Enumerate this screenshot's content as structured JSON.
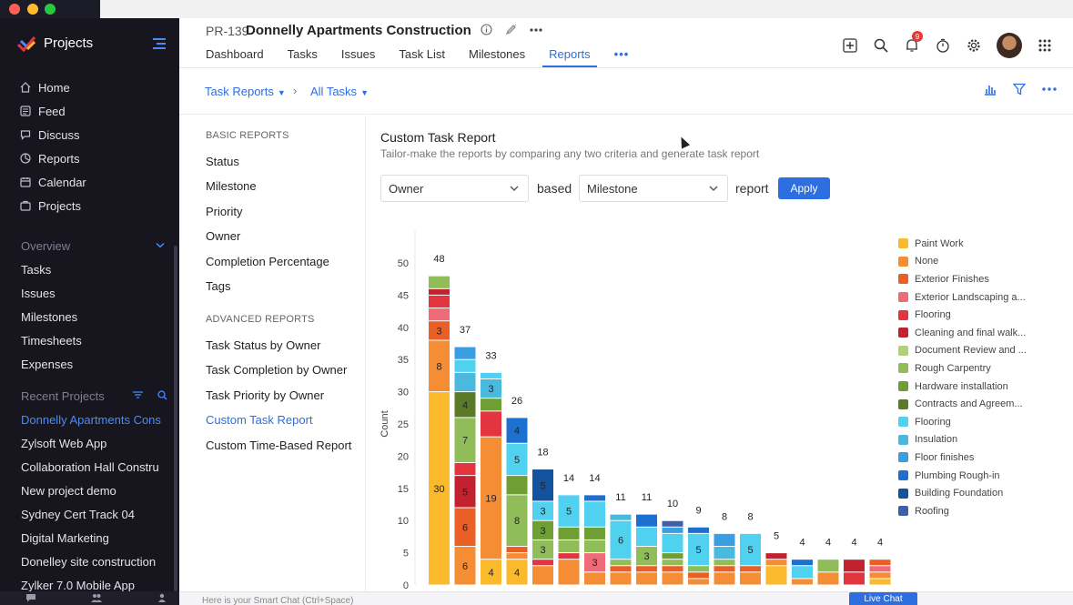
{
  "sidebar": {
    "title": "Projects",
    "nav": [
      {
        "label": "Home",
        "icon": "home-icon"
      },
      {
        "label": "Feed",
        "icon": "feed-icon"
      },
      {
        "label": "Discuss",
        "icon": "discuss-icon"
      },
      {
        "label": "Reports",
        "icon": "reports-icon"
      },
      {
        "label": "Calendar",
        "icon": "calendar-icon"
      },
      {
        "label": "Projects",
        "icon": "projects-icon"
      }
    ],
    "overview_label": "Overview",
    "overview_items": [
      "Tasks",
      "Issues",
      "Milestones",
      "Timesheets",
      "Expenses"
    ],
    "recent_label": "Recent Projects",
    "recent_items": [
      "Donnelly Apartments Cons",
      "Zylsoft Web App",
      "Collaboration Hall Constru",
      "New project demo",
      "Sydney Cert Track 04",
      "Digital Marketing",
      "Donelley site construction",
      "Zylker 7.0 Mobile App"
    ]
  },
  "header": {
    "project_id": "PR-139",
    "project_name": "Donnelly Apartments Construction",
    "tabs": [
      "Dashboard",
      "Tasks",
      "Issues",
      "Task List",
      "Milestones",
      "Reports"
    ],
    "active_tab": "Reports",
    "notification_count": "9"
  },
  "subbar": {
    "crumb1": "Task Reports",
    "crumb2": "All Tasks"
  },
  "report_nav": {
    "basic_label": "BASIC REPORTS",
    "basic": [
      "Status",
      "Milestone",
      "Priority",
      "Owner",
      "Completion Percentage",
      "Tags"
    ],
    "advanced_label": "ADVANCED REPORTS",
    "advanced": [
      "Task Status by Owner",
      "Task Completion by Owner",
      "Task Priority by Owner",
      "Custom Task Report",
      "Custom Time-Based Report"
    ],
    "active": "Custom Task Report"
  },
  "report": {
    "title": "Custom Task Report",
    "subtitle": "Tailor-make the reports by comparing any two criteria and generate task report",
    "criteria1": "Owner",
    "based": "based",
    "criteria2": "Milestone",
    "report_word": "report",
    "apply": "Apply"
  },
  "chart_data": {
    "type": "bar",
    "stacked": true,
    "ylabel": "Count",
    "ylim": [
      0,
      50
    ],
    "yticks": [
      0,
      5,
      10,
      15,
      20,
      25,
      30,
      35,
      40,
      45,
      50
    ],
    "series_names": [
      "Paint Work",
      "None",
      "Exterior Finishes",
      "Exterior Landscaping a...",
      "Flooring",
      "Cleaning and final walk...",
      "Document Review and ...",
      "Rough Carpentry",
      "Hardware installation",
      "Contracts and Agreem...",
      "Flooring",
      "Insulation",
      "Floor finishes",
      "Plumbing Rough-in",
      "Building Foundation",
      "Roofing"
    ],
    "colors": [
      "#fbb92c",
      "#f58d34",
      "#ea5f26",
      "#ee6b77",
      "#e2353f",
      "#c2212f",
      "#b3cf7b",
      "#90bc5a",
      "#6f9e35",
      "#5a7a27",
      "#4fd1ef",
      "#4ab9de",
      "#3a9ee2",
      "#1d70cf",
      "#13529e",
      "#3f5fa8"
    ],
    "totals": [
      48,
      37,
      33,
      26,
      18,
      14,
      14,
      11,
      11,
      10,
      9,
      8,
      8,
      5,
      4,
      4,
      4,
      4
    ],
    "bars": [
      [
        {
          "s": 0,
          "v": 30,
          "label": "30"
        },
        {
          "s": 1,
          "v": 8,
          "label": "8"
        },
        {
          "s": 2,
          "v": 3,
          "label": "3"
        },
        {
          "s": 3,
          "v": 2
        },
        {
          "s": 4,
          "v": 2
        },
        {
          "s": 5,
          "v": 1
        },
        {
          "s": 7,
          "v": 2
        }
      ],
      [
        {
          "s": 1,
          "v": 6,
          "label": "6"
        },
        {
          "s": 2,
          "v": 6,
          "label": "6"
        },
        {
          "s": 5,
          "v": 5,
          "label": "5"
        },
        {
          "s": 4,
          "v": 2
        },
        {
          "s": 7,
          "v": 7,
          "label": "7"
        },
        {
          "s": 9,
          "v": 4,
          "label": "4"
        },
        {
          "s": 11,
          "v": 3
        },
        {
          "s": 10,
          "v": 2
        },
        {
          "s": 12,
          "v": 2
        }
      ],
      [
        {
          "s": 0,
          "v": 4,
          "label": "4"
        },
        {
          "s": 1,
          "v": 19,
          "label": "19"
        },
        {
          "s": 4,
          "v": 4
        },
        {
          "s": 8,
          "v": 2
        },
        {
          "s": 11,
          "v": 3,
          "label": "3"
        },
        {
          "s": 10,
          "v": 1
        }
      ],
      [
        {
          "s": 0,
          "v": 4,
          "label": "4"
        },
        {
          "s": 1,
          "v": 1
        },
        {
          "s": 2,
          "v": 1
        },
        {
          "s": 7,
          "v": 8,
          "label": "8"
        },
        {
          "s": 8,
          "v": 3
        },
        {
          "s": 10,
          "v": 5,
          "label": "5"
        },
        {
          "s": 13,
          "v": 4,
          "label": "4"
        }
      ],
      [
        {
          "s": 1,
          "v": 3
        },
        {
          "s": 4,
          "v": 1
        },
        {
          "s": 7,
          "v": 3,
          "label": "3"
        },
        {
          "s": 8,
          "v": 3,
          "label": "3"
        },
        {
          "s": 10,
          "v": 3,
          "label": "3"
        },
        {
          "s": 14,
          "v": 5,
          "label": "5"
        }
      ],
      [
        {
          "s": 1,
          "v": 4
        },
        {
          "s": 4,
          "v": 1
        },
        {
          "s": 7,
          "v": 2
        },
        {
          "s": 8,
          "v": 2
        },
        {
          "s": 10,
          "v": 5,
          "label": "5"
        }
      ],
      [
        {
          "s": 1,
          "v": 2
        },
        {
          "s": 3,
          "v": 3,
          "label": "3"
        },
        {
          "s": 7,
          "v": 2
        },
        {
          "s": 8,
          "v": 2
        },
        {
          "s": 10,
          "v": 4
        },
        {
          "s": 13,
          "v": 1
        }
      ],
      [
        {
          "s": 1,
          "v": 2
        },
        {
          "s": 2,
          "v": 1
        },
        {
          "s": 7,
          "v": 1
        },
        {
          "s": 10,
          "v": 6,
          "label": "6"
        },
        {
          "s": 11,
          "v": 1
        }
      ],
      [
        {
          "s": 1,
          "v": 2
        },
        {
          "s": 2,
          "v": 1
        },
        {
          "s": 7,
          "v": 3,
          "label": "3"
        },
        {
          "s": 10,
          "v": 3
        },
        {
          "s": 13,
          "v": 2
        }
      ],
      [
        {
          "s": 1,
          "v": 2
        },
        {
          "s": 2,
          "v": 1
        },
        {
          "s": 7,
          "v": 1
        },
        {
          "s": 8,
          "v": 1
        },
        {
          "s": 10,
          "v": 3
        },
        {
          "s": 12,
          "v": 1
        },
        {
          "s": 15,
          "v": 1
        }
      ],
      [
        {
          "s": 1,
          "v": 1
        },
        {
          "s": 2,
          "v": 1
        },
        {
          "s": 7,
          "v": 1
        },
        {
          "s": 10,
          "v": 5,
          "label": "5"
        },
        {
          "s": 13,
          "v": 1
        }
      ],
      [
        {
          "s": 1,
          "v": 2
        },
        {
          "s": 2,
          "v": 1
        },
        {
          "s": 7,
          "v": 1
        },
        {
          "s": 11,
          "v": 2
        },
        {
          "s": 12,
          "v": 2
        }
      ],
      [
        {
          "s": 1,
          "v": 2
        },
        {
          "s": 2,
          "v": 1
        },
        {
          "s": 10,
          "v": 5,
          "label": "5"
        }
      ],
      [
        {
          "s": 0,
          "v": 3
        },
        {
          "s": 1,
          "v": 1
        },
        {
          "s": 5,
          "v": 1
        }
      ],
      [
        {
          "s": 1,
          "v": 1
        },
        {
          "s": 10,
          "v": 2
        },
        {
          "s": 13,
          "v": 1
        }
      ],
      [
        {
          "s": 1,
          "v": 2
        },
        {
          "s": 7,
          "v": 2
        }
      ],
      [
        {
          "s": 4,
          "v": 2
        },
        {
          "s": 5,
          "v": 2
        }
      ],
      [
        {
          "s": 0,
          "v": 1
        },
        {
          "s": 1,
          "v": 1
        },
        {
          "s": 3,
          "v": 1
        },
        {
          "s": 2,
          "v": 1
        }
      ]
    ]
  },
  "chat": {
    "placeholder": "Here is your Smart Chat (Ctrl+Space)",
    "live_chat": "Live Chat"
  }
}
